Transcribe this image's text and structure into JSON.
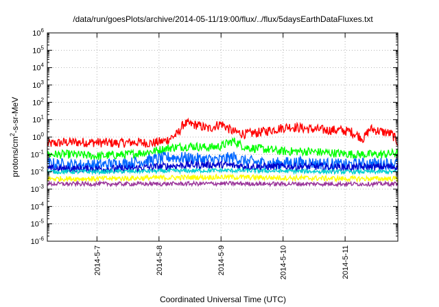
{
  "chart_data": {
    "type": "line",
    "title": "/data/run/goesPlots/archive/2014-05-11/19:00/flux/../flux/5daysEarthDataFluxes.txt",
    "xlabel": "Coordinated Universal Time (UTC)",
    "ylabel_base": "protons/cm",
    "ylabel_sup": "2",
    "ylabel_rest": "-s-sr-MeV",
    "y_scale": "log",
    "ylim": [
      1e-06,
      1000000.0
    ],
    "y_ticks": [
      {
        "value": 1000000.0,
        "base": "10",
        "exp": "6"
      },
      {
        "value": 100000.0,
        "base": "10",
        "exp": "5"
      },
      {
        "value": 10000.0,
        "base": "10",
        "exp": "4"
      },
      {
        "value": 1000.0,
        "base": "10",
        "exp": "3"
      },
      {
        "value": 100.0,
        "base": "10",
        "exp": "2"
      },
      {
        "value": 10.0,
        "base": "10",
        "exp": "1"
      },
      {
        "value": 1.0,
        "base": "10",
        "exp": "0"
      },
      {
        "value": 0.1,
        "base": "10",
        "exp": "-1"
      },
      {
        "value": 0.01,
        "base": "10",
        "exp": "-2"
      },
      {
        "value": 0.001,
        "base": "10",
        "exp": "-3"
      },
      {
        "value": 0.0001,
        "base": "10",
        "exp": "-4"
      },
      {
        "value": 1e-05,
        "base": "10",
        "exp": "-5"
      },
      {
        "value": 1e-06,
        "base": "10",
        "exp": "-6"
      }
    ],
    "x_unit": "days",
    "xlim": [
      6.2,
      11.85
    ],
    "x_ticks": [
      {
        "value": 7,
        "label": "2014-5-7"
      },
      {
        "value": 8,
        "label": "2014-5-8"
      },
      {
        "value": 9,
        "label": "2014-5-9"
      },
      {
        "value": 10,
        "label": "2014-5-10"
      },
      {
        "value": 11,
        "label": "2014-5-11"
      }
    ],
    "grid": true,
    "series": [
      {
        "color": "#ff0000",
        "noise": 0.28,
        "points": [
          [
            6.2,
            0.4
          ],
          [
            6.5,
            0.5
          ],
          [
            6.9,
            0.5
          ],
          [
            7.3,
            0.45
          ],
          [
            7.6,
            0.5
          ],
          [
            7.9,
            0.45
          ],
          [
            8.1,
            0.6
          ],
          [
            8.3,
            1.5
          ],
          [
            8.4,
            6
          ],
          [
            8.6,
            5
          ],
          [
            8.8,
            3
          ],
          [
            9.0,
            6
          ],
          [
            9.2,
            2
          ],
          [
            9.4,
            1.5
          ],
          [
            9.6,
            1.8
          ],
          [
            9.8,
            2.5
          ],
          [
            10.1,
            4
          ],
          [
            10.4,
            3
          ],
          [
            10.7,
            2.5
          ],
          [
            10.9,
            2.5
          ],
          [
            11.1,
            2
          ],
          [
            11.3,
            0.8
          ],
          [
            11.4,
            3
          ],
          [
            11.6,
            2
          ],
          [
            11.75,
            1.5
          ],
          [
            11.85,
            0.5
          ]
        ]
      },
      {
        "color": "#00ff00",
        "noise": 0.25,
        "points": [
          [
            6.2,
            0.1
          ],
          [
            6.6,
            0.1
          ],
          [
            7.0,
            0.08
          ],
          [
            7.5,
            0.1
          ],
          [
            7.9,
            0.15
          ],
          [
            8.2,
            0.25
          ],
          [
            8.5,
            0.3
          ],
          [
            8.8,
            0.25
          ],
          [
            9.0,
            0.3
          ],
          [
            9.2,
            0.6
          ],
          [
            9.4,
            0.25
          ],
          [
            9.7,
            0.2
          ],
          [
            10.0,
            0.15
          ],
          [
            10.4,
            0.15
          ],
          [
            10.8,
            0.12
          ],
          [
            11.2,
            0.1
          ],
          [
            11.6,
            0.1
          ],
          [
            11.85,
            0.12
          ]
        ]
      },
      {
        "color": "#0066ff",
        "noise": 0.35,
        "points": [
          [
            6.2,
            0.03
          ],
          [
            6.6,
            0.025
          ],
          [
            7.0,
            0.025
          ],
          [
            7.5,
            0.03
          ],
          [
            7.9,
            0.05
          ],
          [
            8.2,
            0.07
          ],
          [
            8.5,
            0.06
          ],
          [
            8.8,
            0.05
          ],
          [
            9.0,
            0.05
          ],
          [
            9.2,
            0.07
          ],
          [
            9.4,
            0.04
          ],
          [
            9.8,
            0.03
          ],
          [
            10.2,
            0.035
          ],
          [
            10.6,
            0.03
          ],
          [
            11.0,
            0.025
          ],
          [
            11.4,
            0.03
          ],
          [
            11.85,
            0.03
          ]
        ]
      },
      {
        "color": "#0000cc",
        "noise": 0.22,
        "points": [
          [
            6.2,
            0.015
          ],
          [
            6.8,
            0.015
          ],
          [
            7.5,
            0.015
          ],
          [
            8.0,
            0.02
          ],
          [
            8.5,
            0.025
          ],
          [
            9.0,
            0.025
          ],
          [
            9.5,
            0.02
          ],
          [
            10.0,
            0.02
          ],
          [
            10.5,
            0.02
          ],
          [
            11.0,
            0.018
          ],
          [
            11.85,
            0.02
          ]
        ]
      },
      {
        "color": "#00d0d0",
        "noise": 0.12,
        "points": [
          [
            6.2,
            0.01
          ],
          [
            7.0,
            0.01
          ],
          [
            8.0,
            0.011
          ],
          [
            9.0,
            0.012
          ],
          [
            10.0,
            0.011
          ],
          [
            11.0,
            0.01
          ],
          [
            11.85,
            0.01
          ]
        ]
      },
      {
        "color": "#ffff00",
        "noise": 0.15,
        "points": [
          [
            6.2,
            0.004
          ],
          [
            7.0,
            0.004
          ],
          [
            8.0,
            0.0045
          ],
          [
            9.0,
            0.005
          ],
          [
            10.0,
            0.0045
          ],
          [
            11.0,
            0.004
          ],
          [
            11.85,
            0.004
          ]
        ]
      },
      {
        "color": "#993399",
        "noise": 0.12,
        "points": [
          [
            6.2,
            0.002
          ],
          [
            7.0,
            0.002
          ],
          [
            8.0,
            0.002
          ],
          [
            9.0,
            0.0021
          ],
          [
            10.0,
            0.002
          ],
          [
            11.0,
            0.002
          ],
          [
            11.85,
            0.002
          ]
        ]
      }
    ]
  }
}
